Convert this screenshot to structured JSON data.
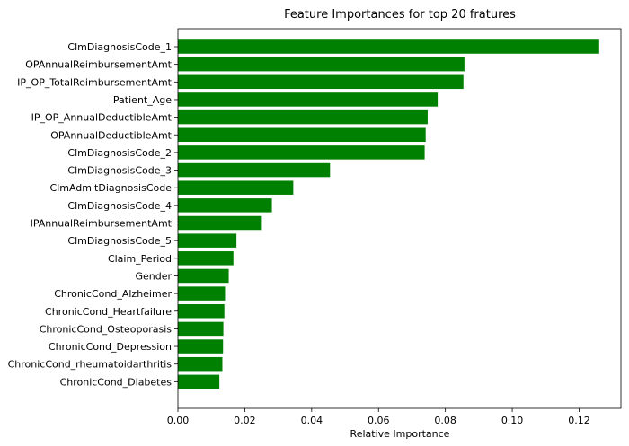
{
  "chart_data": {
    "type": "bar",
    "orientation": "horizontal",
    "title": "Feature Importances for top 20 fratures",
    "xlabel": "Relative Importance",
    "ylabel": "",
    "xlim": [
      0,
      0.1325
    ],
    "xticks": [
      0.0,
      0.02,
      0.04,
      0.06,
      0.08,
      0.1,
      0.12
    ],
    "xtick_labels": [
      "0.00",
      "0.02",
      "0.04",
      "0.06",
      "0.08",
      "0.10",
      "0.12"
    ],
    "bar_color": "#008000",
    "grid": false,
    "legend": "none",
    "categories": [
      "ClmDiagnosisCode_1",
      "OPAnnualReimbursementAmt",
      "IP_OP_TotalReimbursementAmt",
      "Patient_Age",
      "IP_OP_AnnualDeductibleAmt",
      "OPAnnualDeductibleAmt",
      "ClmDiagnosisCode_2",
      "ClmDiagnosisCode_3",
      "ClmAdmitDiagnosisCode",
      "ClmDiagnosisCode_4",
      "IPAnnualReimbursementAmt",
      "ClmDiagnosisCode_5",
      "Claim_Period",
      "Gender",
      "ChronicCond_Alzheimer",
      "ChronicCond_Heartfailure",
      "ChronicCond_Osteoporasis",
      "ChronicCond_Depression",
      "ChronicCond_rheumatoidarthritis",
      "ChronicCond_Diabetes"
    ],
    "values": [
      0.126,
      0.0857,
      0.0854,
      0.0777,
      0.0747,
      0.0741,
      0.0738,
      0.0455,
      0.0345,
      0.0281,
      0.0251,
      0.0175,
      0.0166,
      0.0152,
      0.0141,
      0.0139,
      0.0136,
      0.0135,
      0.0133,
      0.0124
    ]
  }
}
